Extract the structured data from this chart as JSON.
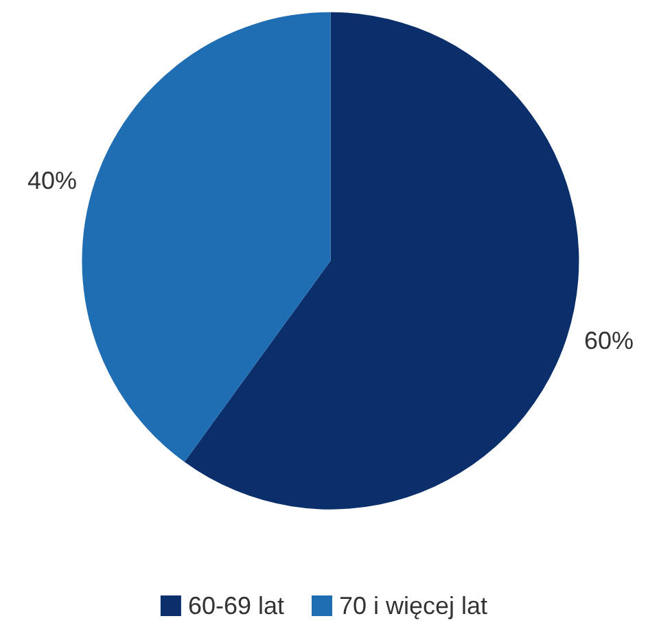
{
  "chart_data": {
    "type": "pie",
    "categories": [
      "60-69 lat",
      "70 i więcej lat"
    ],
    "values": [
      60,
      40
    ],
    "colors": [
      "#0b2f6b",
      "#1f6db3"
    ],
    "value_labels": [
      "60%",
      "40%"
    ],
    "legend": "bottom"
  }
}
